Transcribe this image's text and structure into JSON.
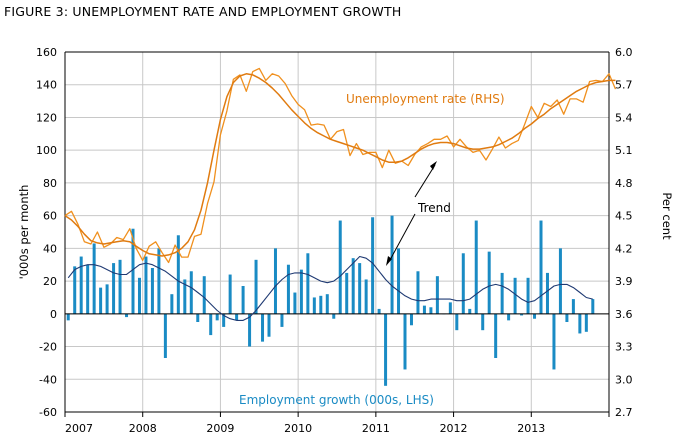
{
  "chart_data": {
    "type": "bar+line",
    "title": "FIGURE 3: UNEMPLOYMENT RATE AND EMPLOYMENT GROWTH",
    "ylabel_left": "'000s per month",
    "ylabel_right": "Per cent",
    "ylim_left": [
      -60,
      160
    ],
    "ylim_right": [
      2.7,
      6.0
    ],
    "yticks_left": [
      "160",
      "140",
      "120",
      "100",
      "80",
      "60",
      "40",
      "20",
      "0",
      "-20",
      "-40",
      "-60"
    ],
    "yticks_right": [
      "6.0",
      "5.7",
      "5.4",
      "5.1",
      "4.8",
      "4.5",
      "4.2",
      "3.9",
      "3.6",
      "3.3",
      "3.0",
      "2.7"
    ],
    "x_range": [
      2007,
      2014
    ],
    "xticks": [
      "2007",
      "2008",
      "2009",
      "2010",
      "2011",
      "2012",
      "2013"
    ],
    "annotations": {
      "unemployment": "Unemployment rate (RHS)",
      "trend": "Trend",
      "employment": "Employment growth (000s, LHS)"
    },
    "colors": {
      "bars": "#1a8bc4",
      "emp_trend": "#1f3a73",
      "unemp": "#f0901e",
      "unemp_trend": "#e07b10",
      "grid": "#c8c8c8",
      "axis": "#000000",
      "annot_orange": "#e07b10",
      "annot_blue": "#1a8bc4"
    },
    "employment_growth": [
      -4,
      29,
      35,
      30,
      43,
      16,
      18,
      31,
      33,
      -2,
      52,
      22,
      35,
      28,
      40,
      -27,
      12,
      48,
      21,
      26,
      -5,
      23,
      -13,
      -4,
      -8,
      24,
      -4,
      17,
      -20,
      33,
      -17,
      -14,
      40,
      -8,
      30,
      13,
      27,
      37,
      10,
      11,
      12,
      -3,
      57,
      25,
      34,
      31,
      21,
      59,
      3,
      -44,
      60,
      40,
      -34,
      -7,
      26,
      5,
      4,
      23,
      0,
      7,
      -10,
      37,
      3,
      57,
      -10,
      38,
      -27,
      25,
      -4,
      22,
      -1,
      22,
      -3,
      57,
      25,
      -34,
      40,
      -5,
      9,
      -12,
      -11,
      9
    ],
    "employment_trend": [
      22,
      27,
      29,
      30,
      30,
      29,
      27,
      25,
      24,
      24,
      27,
      30,
      31,
      30,
      28,
      26,
      23,
      20,
      18,
      16,
      13,
      10,
      6,
      2,
      -1,
      -3,
      -4,
      -4,
      -2,
      2,
      7,
      12,
      17,
      21,
      24,
      25,
      25,
      24,
      22,
      20,
      19,
      20,
      23,
      27,
      31,
      35,
      34,
      31,
      26,
      21,
      17,
      14,
      11,
      9,
      8,
      8,
      9,
      9,
      9,
      9,
      8,
      8,
      9,
      12,
      15,
      17,
      18,
      17,
      15,
      12,
      9,
      7,
      8,
      11,
      14,
      17,
      18,
      18,
      16,
      13,
      10,
      9
    ],
    "unemployment_rate": [
      4.5,
      4.54,
      4.42,
      4.26,
      4.24,
      4.35,
      4.21,
      4.24,
      4.3,
      4.28,
      4.38,
      4.2,
      4.09,
      4.22,
      4.26,
      4.16,
      4.07,
      4.23,
      4.12,
      4.12,
      4.31,
      4.33,
      4.61,
      4.81,
      5.24,
      5.46,
      5.75,
      5.79,
      5.64,
      5.82,
      5.85,
      5.74,
      5.8,
      5.78,
      5.71,
      5.6,
      5.52,
      5.47,
      5.33,
      5.34,
      5.33,
      5.2,
      5.27,
      5.29,
      5.05,
      5.16,
      5.06,
      5.08,
      5.08,
      4.94,
      5.1,
      4.98,
      5.0,
      4.96,
      5.06,
      5.13,
      5.16,
      5.2,
      5.2,
      5.23,
      5.13,
      5.2,
      5.13,
      5.08,
      5.1,
      5.01,
      5.11,
      5.22,
      5.12,
      5.16,
      5.19,
      5.34,
      5.5,
      5.4,
      5.53,
      5.5,
      5.56,
      5.43,
      5.57,
      5.57,
      5.54,
      5.73,
      5.74,
      5.73,
      5.8,
      5.66
    ],
    "unemployment_trend": [
      4.5,
      4.46,
      4.4,
      4.33,
      4.27,
      4.25,
      4.24,
      4.25,
      4.26,
      4.27,
      4.26,
      4.22,
      4.18,
      4.15,
      4.14,
      4.13,
      4.14,
      4.16,
      4.2,
      4.26,
      4.37,
      4.55,
      4.8,
      5.1,
      5.38,
      5.59,
      5.72,
      5.78,
      5.8,
      5.79,
      5.76,
      5.72,
      5.67,
      5.61,
      5.54,
      5.47,
      5.41,
      5.35,
      5.3,
      5.26,
      5.23,
      5.2,
      5.18,
      5.16,
      5.14,
      5.12,
      5.1,
      5.07,
      5.04,
      5.01,
      4.99,
      4.99,
      5.0,
      5.03,
      5.07,
      5.11,
      5.14,
      5.16,
      5.17,
      5.17,
      5.16,
      5.14,
      5.12,
      5.11,
      5.11,
      5.12,
      5.13,
      5.15,
      5.18,
      5.21,
      5.25,
      5.3,
      5.34,
      5.39,
      5.43,
      5.48,
      5.52,
      5.56,
      5.6,
      5.64,
      5.67,
      5.7,
      5.72,
      5.73,
      5.74,
      5.74
    ]
  }
}
